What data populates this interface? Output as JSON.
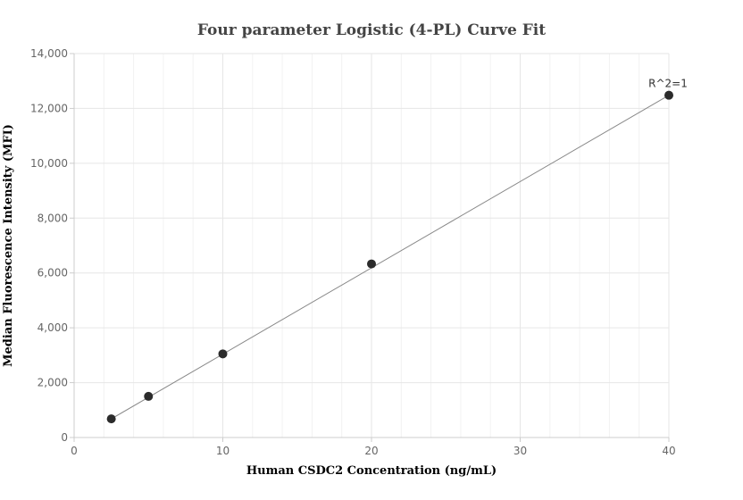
{
  "chart_data": {
    "type": "scatter",
    "title": "Four parameter Logistic (4-PL) Curve Fit",
    "xlabel": "Human CSDC2 Concentration (ng/mL)",
    "ylabel": "Median Fluorescence Intensity (MFI)",
    "xlim": [
      0,
      40
    ],
    "ylim": [
      0,
      14000
    ],
    "x_ticks": [
      0,
      10,
      20,
      30,
      40
    ],
    "y_ticks": [
      0,
      2000,
      4000,
      6000,
      8000,
      10000,
      12000,
      14000
    ],
    "x_tick_labels": [
      "0",
      "10",
      "20",
      "30",
      "40"
    ],
    "y_tick_labels": [
      "0",
      "2,000",
      "4,000",
      "6,000",
      "8,000",
      "10,000",
      "12,000",
      "14,000"
    ],
    "grid": true,
    "series": [
      {
        "x": [
          2.5,
          5,
          10,
          20,
          40
        ],
        "y": [
          680,
          1500,
          3050,
          6330,
          12480
        ]
      }
    ],
    "fit_curve": {
      "x": [
        2.5,
        40
      ],
      "y": [
        680,
        12480
      ]
    },
    "annotation": "R^2=1",
    "colors": {
      "marker": "#2b2b2b",
      "fit_line": "#888888",
      "grid": "#e6e6e6",
      "minor_grid": "#f2f2f2"
    }
  }
}
